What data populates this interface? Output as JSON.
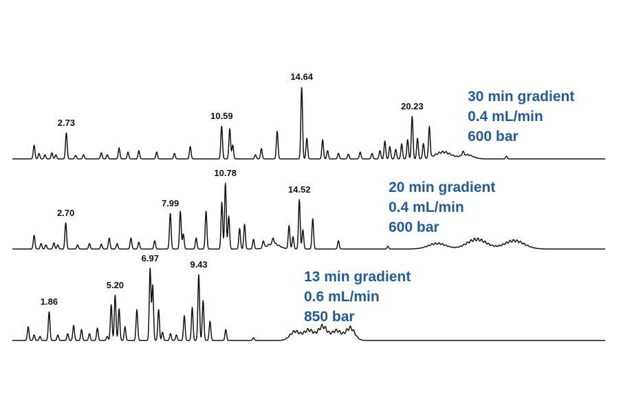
{
  "chart_data": {
    "type": "line",
    "title": "",
    "xlabel": "",
    "ylabel": "",
    "accent_color": "#1f5c99",
    "trace_color": "#111111",
    "series": [
      {
        "conditions": [
          "30 min gradient",
          "0.4 mL/min",
          "600 bar"
        ],
        "x_range": [
          0,
          30
        ],
        "peaks": [
          {
            "x": 1.1,
            "h": 20
          },
          {
            "x": 1.35,
            "h": 8
          },
          {
            "x": 1.65,
            "h": 6
          },
          {
            "x": 2.0,
            "h": 9
          },
          {
            "x": 2.2,
            "h": 6
          },
          {
            "x": 2.73,
            "h": 38,
            "label": "2.73"
          },
          {
            "x": 3.2,
            "h": 5
          },
          {
            "x": 3.6,
            "h": 6
          },
          {
            "x": 4.5,
            "h": 9
          },
          {
            "x": 4.8,
            "h": 6
          },
          {
            "x": 5.4,
            "h": 16
          },
          {
            "x": 5.85,
            "h": 10
          },
          {
            "x": 6.4,
            "h": 12
          },
          {
            "x": 7.3,
            "h": 10
          },
          {
            "x": 8.2,
            "h": 8
          },
          {
            "x": 9.0,
            "h": 18
          },
          {
            "x": 10.59,
            "h": 48,
            "label": "10.59"
          },
          {
            "x": 11.0,
            "h": 44
          },
          {
            "x": 11.15,
            "h": 20
          },
          {
            "x": 12.3,
            "h": 6
          },
          {
            "x": 12.6,
            "h": 15
          },
          {
            "x": 13.4,
            "h": 40
          },
          {
            "x": 14.64,
            "h": 105,
            "label": "14.64"
          },
          {
            "x": 14.9,
            "h": 30
          },
          {
            "x": 15.7,
            "h": 28
          },
          {
            "x": 15.95,
            "h": 12
          },
          {
            "x": 16.5,
            "h": 8
          },
          {
            "x": 17.0,
            "h": 7
          },
          {
            "x": 17.6,
            "h": 10
          },
          {
            "x": 18.2,
            "h": 8
          },
          {
            "x": 18.6,
            "h": 12
          },
          {
            "x": 18.85,
            "h": 26
          },
          {
            "x": 19.1,
            "h": 18
          },
          {
            "x": 19.4,
            "h": 14
          },
          {
            "x": 19.7,
            "h": 22
          },
          {
            "x": 20.0,
            "h": 28
          },
          {
            "x": 20.23,
            "h": 62,
            "label": "20.23"
          },
          {
            "x": 20.5,
            "h": 30
          },
          {
            "x": 20.8,
            "h": 22
          },
          {
            "x": 21.1,
            "h": 45
          },
          {
            "x": 22.8,
            "h": 6
          },
          {
            "x": 25.0,
            "h": 4
          }
        ],
        "humps": [
          {
            "x": 21.8,
            "h": 10,
            "w": 0.8
          },
          {
            "x": 23.0,
            "h": 6,
            "w": 0.6
          }
        ]
      },
      {
        "conditions": [
          "20 min gradient",
          "0.4 mL/min",
          "600 bar"
        ],
        "x_range": [
          0,
          30
        ],
        "peaks": [
          {
            "x": 1.1,
            "h": 20
          },
          {
            "x": 1.45,
            "h": 8
          },
          {
            "x": 1.7,
            "h": 6
          },
          {
            "x": 2.1,
            "h": 9
          },
          {
            "x": 2.3,
            "h": 6
          },
          {
            "x": 2.7,
            "h": 38,
            "label": "2.70"
          },
          {
            "x": 3.3,
            "h": 6
          },
          {
            "x": 3.9,
            "h": 8
          },
          {
            "x": 4.5,
            "h": 7
          },
          {
            "x": 4.9,
            "h": 16
          },
          {
            "x": 5.3,
            "h": 8
          },
          {
            "x": 6.0,
            "h": 16
          },
          {
            "x": 6.4,
            "h": 10
          },
          {
            "x": 7.2,
            "h": 12
          },
          {
            "x": 7.99,
            "h": 52,
            "label": "7.99"
          },
          {
            "x": 8.5,
            "h": 55
          },
          {
            "x": 8.65,
            "h": 22
          },
          {
            "x": 9.3,
            "h": 16
          },
          {
            "x": 9.8,
            "h": 55
          },
          {
            "x": 10.6,
            "h": 68
          },
          {
            "x": 10.78,
            "h": 96,
            "label": "10.78"
          },
          {
            "x": 10.95,
            "h": 48
          },
          {
            "x": 11.5,
            "h": 30
          },
          {
            "x": 11.75,
            "h": 36
          },
          {
            "x": 12.2,
            "h": 14
          },
          {
            "x": 12.7,
            "h": 10
          },
          {
            "x": 13.2,
            "h": 8
          },
          {
            "x": 14.0,
            "h": 34
          },
          {
            "x": 14.2,
            "h": 18
          },
          {
            "x": 14.52,
            "h": 72,
            "label": "14.52"
          },
          {
            "x": 14.7,
            "h": 28
          },
          {
            "x": 15.2,
            "h": 44
          },
          {
            "x": 16.5,
            "h": 12
          },
          {
            "x": 19.0,
            "h": 4
          }
        ],
        "humps": [
          {
            "x": 13.2,
            "h": 8,
            "w": 0.6
          },
          {
            "x": 21.5,
            "h": 8,
            "w": 0.9
          },
          {
            "x": 23.5,
            "h": 14,
            "w": 1.0
          },
          {
            "x": 25.4,
            "h": 12,
            "w": 1.0
          }
        ]
      },
      {
        "conditions": [
          "13 min gradient",
          "0.6 mL/min",
          "850 bar"
        ],
        "x_range": [
          0,
          30
        ],
        "peaks": [
          {
            "x": 0.8,
            "h": 20
          },
          {
            "x": 1.1,
            "h": 8
          },
          {
            "x": 1.4,
            "h": 6
          },
          {
            "x": 1.86,
            "h": 42,
            "label": "1.86"
          },
          {
            "x": 2.3,
            "h": 8
          },
          {
            "x": 2.8,
            "h": 10
          },
          {
            "x": 3.1,
            "h": 22
          },
          {
            "x": 3.5,
            "h": 16
          },
          {
            "x": 3.9,
            "h": 10
          },
          {
            "x": 4.3,
            "h": 18
          },
          {
            "x": 4.8,
            "h": 6
          },
          {
            "x": 5.0,
            "h": 52
          },
          {
            "x": 5.2,
            "h": 66,
            "label": "5.20"
          },
          {
            "x": 5.4,
            "h": 46
          },
          {
            "x": 5.7,
            "h": 20
          },
          {
            "x": 6.3,
            "h": 45
          },
          {
            "x": 6.97,
            "h": 105,
            "label": "6.97"
          },
          {
            "x": 7.1,
            "h": 80
          },
          {
            "x": 7.4,
            "h": 45
          },
          {
            "x": 7.6,
            "h": 12
          },
          {
            "x": 8.0,
            "h": 10
          },
          {
            "x": 8.3,
            "h": 8
          },
          {
            "x": 8.7,
            "h": 36
          },
          {
            "x": 9.1,
            "h": 48
          },
          {
            "x": 9.43,
            "h": 96,
            "label": "9.43"
          },
          {
            "x": 9.65,
            "h": 58
          },
          {
            "x": 10.0,
            "h": 28
          },
          {
            "x": 10.8,
            "h": 16
          },
          {
            "x": 12.2,
            "h": 4
          }
        ],
        "humps": [
          {
            "x": 14.3,
            "h": 13,
            "w": 0.5
          },
          {
            "x": 15.0,
            "h": 15,
            "w": 0.5
          },
          {
            "x": 15.7,
            "h": 20,
            "w": 0.45
          },
          {
            "x": 16.4,
            "h": 14,
            "w": 0.5
          },
          {
            "x": 17.1,
            "h": 18,
            "w": 0.45
          }
        ]
      }
    ]
  }
}
